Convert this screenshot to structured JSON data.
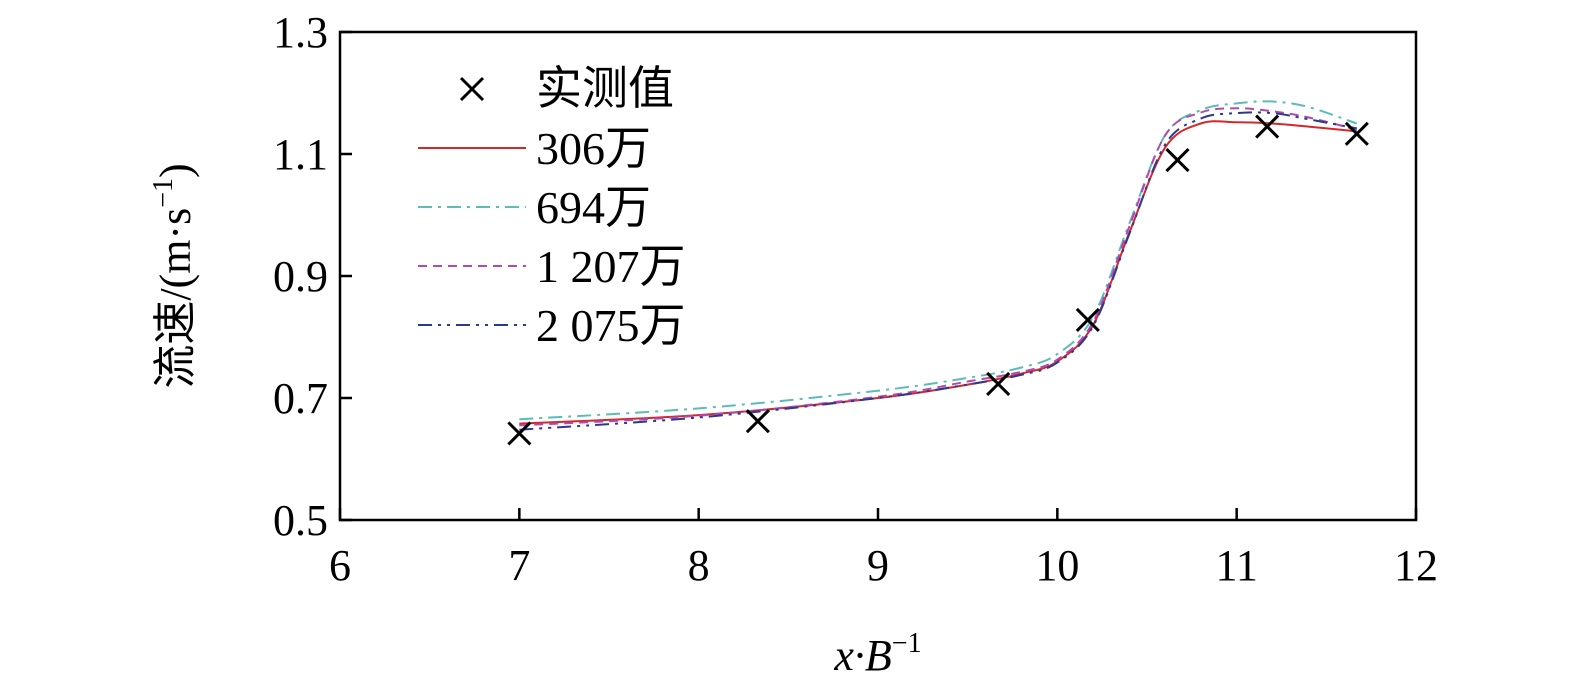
{
  "chart_data": {
    "type": "line",
    "xlabel": {
      "main": "x·B",
      "sup": "−1"
    },
    "ylabel": {
      "main": "流速/(m·s",
      "sup": "−1",
      "tail": ")"
    },
    "xlim": [
      6,
      12
    ],
    "ylim": [
      0.5,
      1.3
    ],
    "xticks": [
      "6",
      "7",
      "8",
      "9",
      "10",
      "11",
      "12"
    ],
    "yticks": [
      "0.5",
      "0.7",
      "0.9",
      "1.1",
      "1.3"
    ],
    "grid": false,
    "legend_position": "top-left",
    "measured": {
      "name": "实测值",
      "x": [
        7.0,
        8.33,
        9.67,
        10.17,
        10.67,
        11.17,
        11.67
      ],
      "y": [
        0.642,
        0.662,
        0.723,
        0.828,
        1.09,
        1.145,
        1.133
      ]
    },
    "series": [
      {
        "name": "306万",
        "color": "#d62728",
        "dash": "",
        "x": [
          7.0,
          8.0,
          9.0,
          9.5,
          9.8,
          10.0,
          10.2,
          10.4,
          10.6,
          10.8,
          11.0,
          11.2,
          11.4,
          11.67
        ],
        "y": [
          0.658,
          0.672,
          0.7,
          0.722,
          0.74,
          0.76,
          0.82,
          0.97,
          1.11,
          1.15,
          1.152,
          1.15,
          1.145,
          1.137
        ]
      },
      {
        "name": "694万",
        "color": "#5bbcb8",
        "dash": "14 6 3 6",
        "x": [
          7.0,
          8.0,
          9.0,
          9.5,
          9.8,
          10.0,
          10.2,
          10.4,
          10.6,
          10.8,
          11.0,
          11.2,
          11.4,
          11.67
        ],
        "y": [
          0.665,
          0.683,
          0.712,
          0.733,
          0.75,
          0.772,
          0.833,
          0.985,
          1.13,
          1.172,
          1.183,
          1.186,
          1.177,
          1.15
        ]
      },
      {
        "name": "1 207万",
        "color": "#b04ab0",
        "dash": "9 6",
        "x": [
          7.0,
          8.0,
          9.0,
          9.5,
          9.8,
          10.0,
          10.2,
          10.4,
          10.6,
          10.8,
          11.0,
          11.2,
          11.4,
          11.67
        ],
        "y": [
          0.655,
          0.671,
          0.702,
          0.727,
          0.743,
          0.763,
          0.825,
          0.98,
          1.13,
          1.168,
          1.175,
          1.17,
          1.16,
          1.14
        ]
      },
      {
        "name": "2 075万",
        "color": "#2b3a8c",
        "dash": "14 6 3 6 3 6",
        "x": [
          7.0,
          8.0,
          9.0,
          9.5,
          9.8,
          10.0,
          10.2,
          10.4,
          10.6,
          10.8,
          11.0,
          11.2,
          11.4,
          11.67
        ],
        "y": [
          0.648,
          0.668,
          0.7,
          0.722,
          0.738,
          0.758,
          0.818,
          0.968,
          1.115,
          1.158,
          1.167,
          1.167,
          1.157,
          1.142
        ]
      }
    ]
  }
}
